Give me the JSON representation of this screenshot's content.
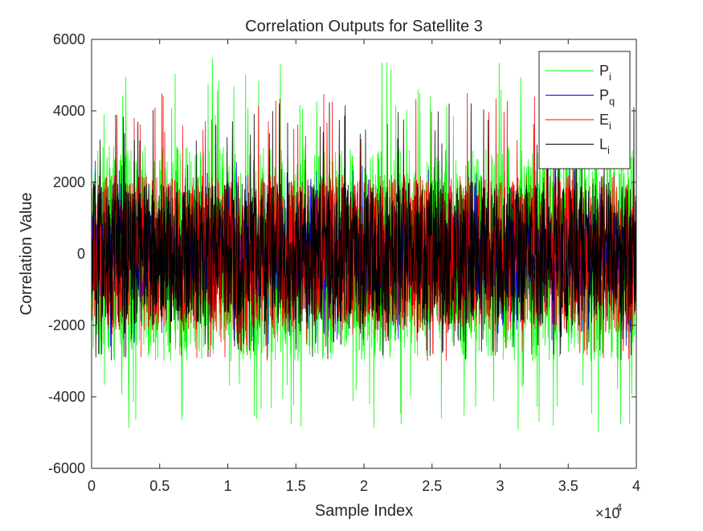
{
  "chart_data": {
    "type": "line",
    "title": "Correlation Outputs for Satellite 3",
    "xlabel": "Sample Index",
    "ylabel": "Correlation Value",
    "x_exponent_label": "×10",
    "x_exponent_power": "4",
    "xlim": [
      0,
      40000
    ],
    "ylim": [
      -6000,
      6000
    ],
    "x_tick_values": [
      0,
      5000,
      10000,
      15000,
      20000,
      25000,
      30000,
      35000,
      40000
    ],
    "x_tick_labels": [
      "0",
      "0.5",
      "1",
      "1.5",
      "2",
      "2.5",
      "3",
      "3.5",
      "4"
    ],
    "y_tick_values": [
      -6000,
      -4000,
      -2000,
      0,
      2000,
      4000,
      6000
    ],
    "y_tick_labels": [
      "-6000",
      "-4000",
      "-2000",
      "0",
      "2000",
      "4000",
      "6000"
    ],
    "grid": false,
    "legend_position": "top-right",
    "num_samples": 40000,
    "series": [
      {
        "name": "P",
        "subscript": "i",
        "color": "#00ff00",
        "noise_amplitude": 3000,
        "peak_max": 5500,
        "peak_min": -5100
      },
      {
        "name": "P",
        "subscript": "q",
        "color": "#0000ff",
        "noise_amplitude": 1200,
        "peak_max": 2600,
        "peak_min": -2600
      },
      {
        "name": "E",
        "subscript": "i",
        "color": "#ff0000",
        "noise_amplitude": 2200,
        "peak_max": 4500,
        "peak_min": -3000
      },
      {
        "name": "L",
        "subscript": "i",
        "color": "#000000",
        "noise_amplitude": 2000,
        "peak_max": 4300,
        "peak_min": -3000
      }
    ]
  }
}
